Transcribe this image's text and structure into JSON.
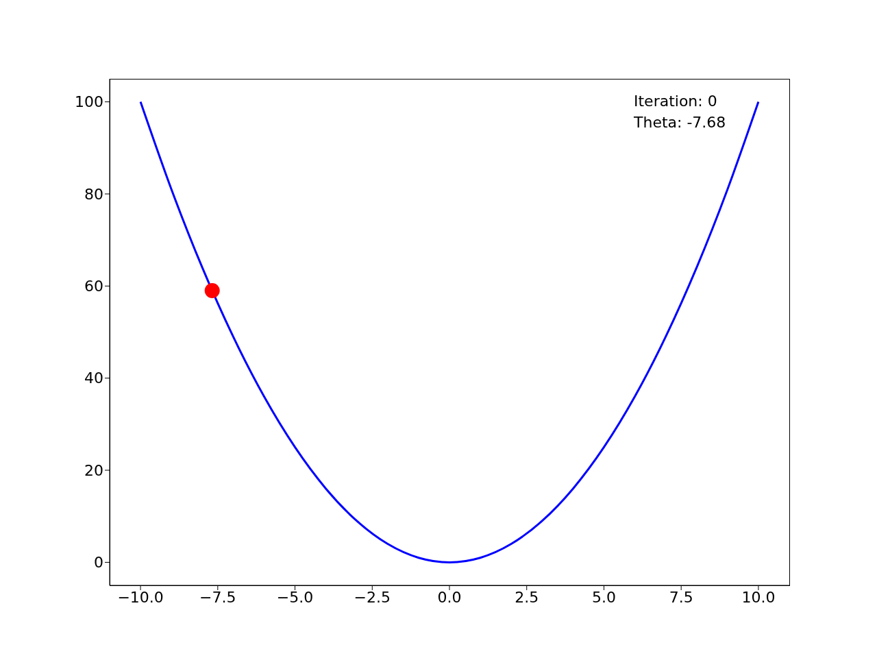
{
  "chart_data": {
    "type": "line",
    "xlim": [
      -11,
      11
    ],
    "ylim": [
      -5,
      105
    ],
    "xticks": [
      {
        "value": -10,
        "label": "−10.0"
      },
      {
        "value": -7.5,
        "label": "−7.5"
      },
      {
        "value": -5,
        "label": "−5.0"
      },
      {
        "value": -2.5,
        "label": "−2.5"
      },
      {
        "value": 0,
        "label": "0.0"
      },
      {
        "value": 2.5,
        "label": "2.5"
      },
      {
        "value": 5,
        "label": "5.0"
      },
      {
        "value": 7.5,
        "label": "7.5"
      },
      {
        "value": 10,
        "label": "10.0"
      }
    ],
    "yticks": [
      0,
      20,
      40,
      60,
      80,
      100
    ],
    "series": [
      {
        "color": "#0000ff",
        "marker": "none",
        "line_style": "solid",
        "x": [
          -10,
          -9,
          -8,
          -7,
          -6,
          -5,
          -4,
          -3,
          -2,
          -1,
          0,
          1,
          2,
          3,
          4,
          5,
          6,
          7,
          8,
          9,
          10
        ],
        "values": [
          100,
          81,
          64,
          49,
          36,
          25,
          16,
          9,
          4,
          1,
          0,
          1,
          4,
          9,
          16,
          25,
          36,
          49,
          64,
          81,
          100
        ]
      },
      {
        "type": "scatter",
        "color": "#ff0000",
        "marker": "circle",
        "x": [
          -7.68
        ],
        "values": [
          59
        ]
      }
    ],
    "annotations": [
      "Iteration: 0",
      "Theta: -7.68"
    ]
  }
}
